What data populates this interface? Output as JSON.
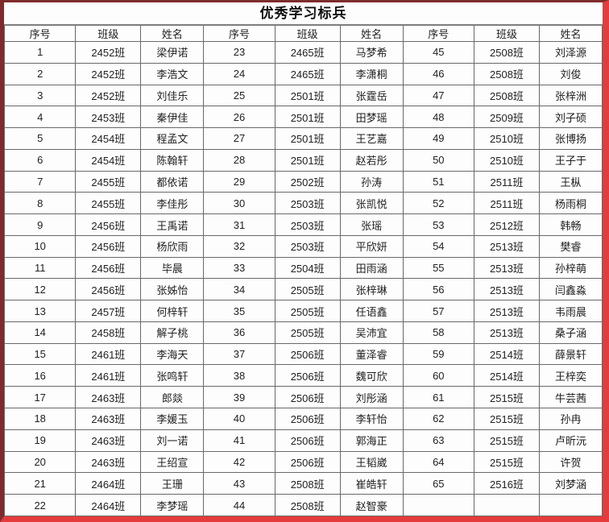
{
  "title": "优秀学习标兵",
  "colors": {
    "frame_dark_red": "#7f2b2c",
    "frame_bright_red": "#e63b3c",
    "grid_line": "#696969",
    "text": "#212121"
  },
  "table": {
    "header": [
      "序号",
      "班级",
      "姓名",
      "序号",
      "班级",
      "姓名",
      "序号",
      "班级",
      "姓名"
    ],
    "rows": [
      [
        "1",
        "2452班",
        "梁伊诺",
        "23",
        "2465班",
        "马梦希",
        "45",
        "2508班",
        "刘泽源"
      ],
      [
        "2",
        "2452班",
        "李浩文",
        "24",
        "2465班",
        "李潇桐",
        "46",
        "2508班",
        "刘俊"
      ],
      [
        "3",
        "2452班",
        "刘佳乐",
        "25",
        "2501班",
        "张霆岳",
        "47",
        "2508班",
        "张梓洲"
      ],
      [
        "4",
        "2453班",
        "秦伊佳",
        "26",
        "2501班",
        "田梦瑶",
        "48",
        "2509班",
        "刘子硕"
      ],
      [
        "5",
        "2454班",
        "程孟文",
        "27",
        "2501班",
        "王艺嘉",
        "49",
        "2510班",
        "张博扬"
      ],
      [
        "6",
        "2454班",
        "陈翰轩",
        "28",
        "2501班",
        "赵若彤",
        "50",
        "2510班",
        "王子于"
      ],
      [
        "7",
        "2455班",
        "都依诺",
        "29",
        "2502班",
        "孙涛",
        "51",
        "2511班",
        "王枞"
      ],
      [
        "8",
        "2455班",
        "李佳彤",
        "30",
        "2503班",
        "张凯悦",
        "52",
        "2511班",
        "杨雨桐"
      ],
      [
        "9",
        "2456班",
        "王禹诺",
        "31",
        "2503班",
        "张瑶",
        "53",
        "2512班",
        "韩畅"
      ],
      [
        "10",
        "2456班",
        "杨欣雨",
        "32",
        "2503班",
        "平欣妍",
        "54",
        "2513班",
        "樊睿"
      ],
      [
        "11",
        "2456班",
        "毕晨",
        "33",
        "2504班",
        "田雨涵",
        "55",
        "2513班",
        "孙梓萌"
      ],
      [
        "12",
        "2456班",
        "张姊怡",
        "34",
        "2505班",
        "张梓琳",
        "56",
        "2513班",
        "闫鑫淼"
      ],
      [
        "13",
        "2457班",
        "何梓轩",
        "35",
        "2505班",
        "任语鑫",
        "57",
        "2513班",
        "韦雨晨"
      ],
      [
        "14",
        "2458班",
        "解子桃",
        "36",
        "2505班",
        "吴沛宜",
        "58",
        "2513班",
        "桑子涵"
      ],
      [
        "15",
        "2461班",
        "李海天",
        "37",
        "2506班",
        "董泽睿",
        "59",
        "2514班",
        "薛景轩"
      ],
      [
        "16",
        "2461班",
        "张鸣轩",
        "38",
        "2506班",
        "魏可欣",
        "60",
        "2514班",
        "王梓奕"
      ],
      [
        "17",
        "2463班",
        "郎燚",
        "39",
        "2506班",
        "刘彤涵",
        "61",
        "2515班",
        "牛芸茜"
      ],
      [
        "18",
        "2463班",
        "李媛玉",
        "40",
        "2506班",
        "李轩怡",
        "62",
        "2515班",
        "孙冉"
      ],
      [
        "19",
        "2463班",
        "刘一诺",
        "41",
        "2506班",
        "郭海正",
        "63",
        "2515班",
        "卢昕沅"
      ],
      [
        "20",
        "2463班",
        "王绍宣",
        "42",
        "2506班",
        "王韬崴",
        "64",
        "2515班",
        "许贺"
      ],
      [
        "21",
        "2464班",
        "王珊",
        "43",
        "2508班",
        "崔皓轩",
        "65",
        "2516班",
        "刘梦涵"
      ],
      [
        "22",
        "2464班",
        "李梦瑶",
        "44",
        "2508班",
        "赵智豪",
        "",
        "",
        ""
      ]
    ]
  }
}
